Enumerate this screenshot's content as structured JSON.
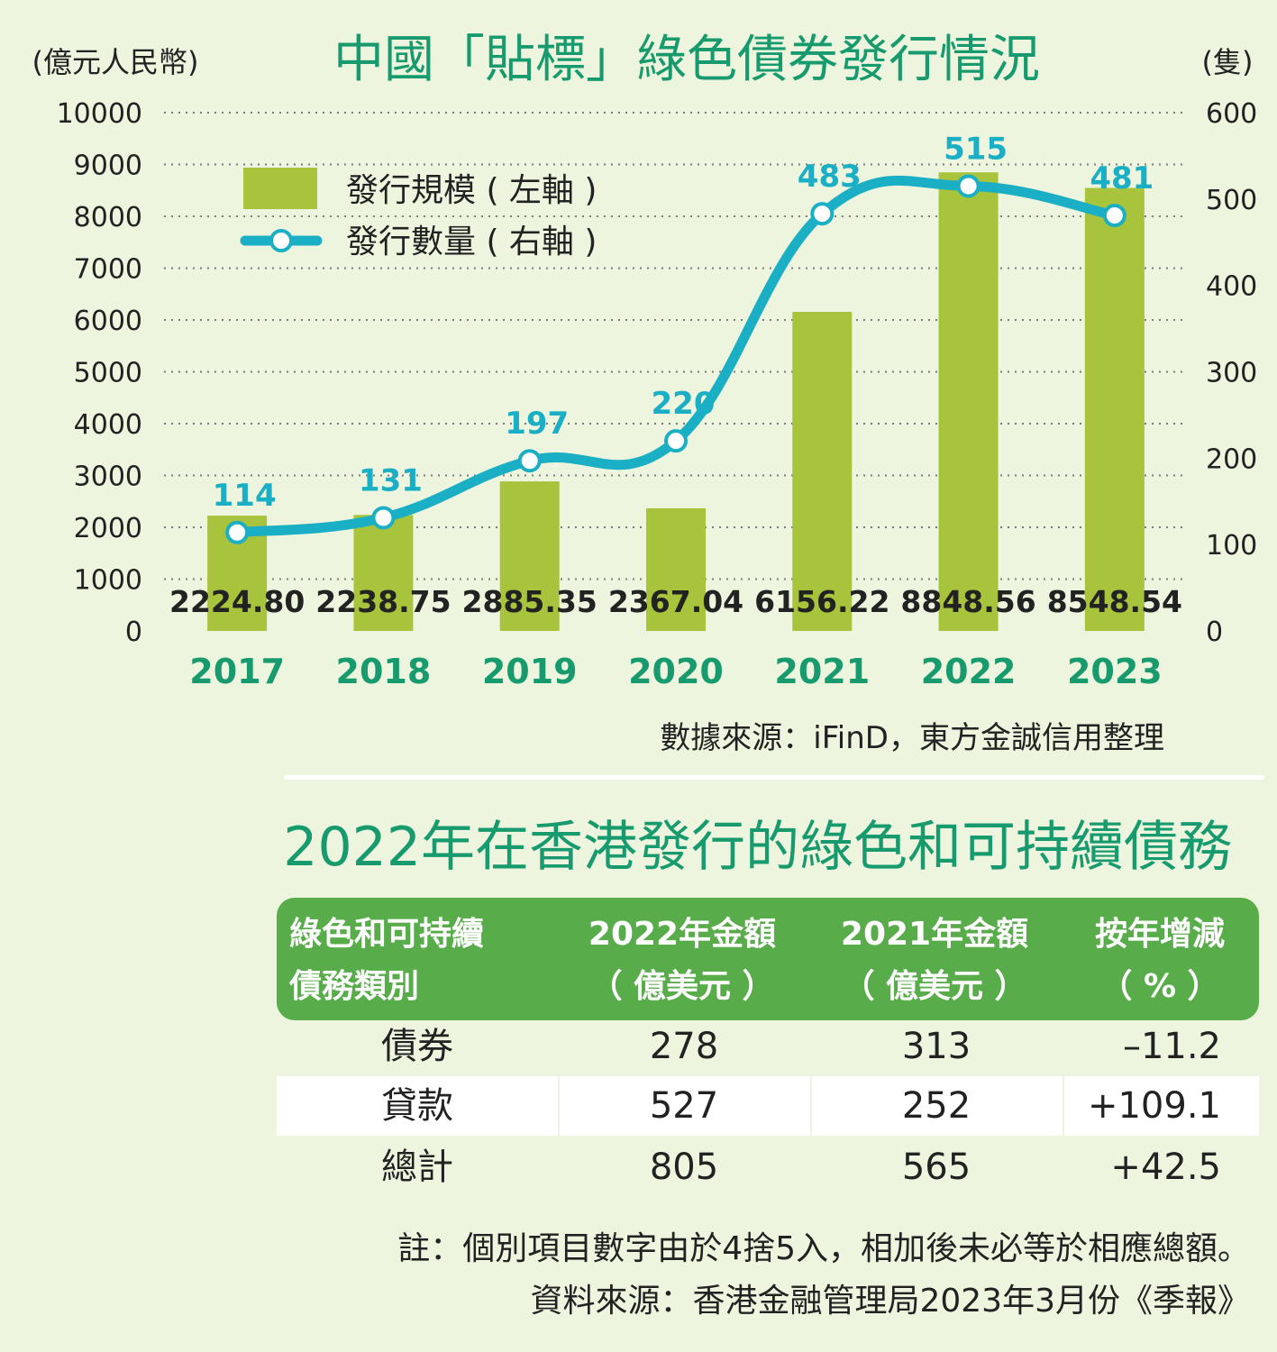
{
  "chart_data": {
    "type": "bar",
    "title": "中國「貼標」綠色債券發行情況",
    "left_axis_unit": "(億元人民幣)",
    "right_axis_unit": "(隻)",
    "categories": [
      "2017",
      "2018",
      "2019",
      "2020",
      "2021",
      "2022",
      "2023"
    ],
    "left_ticks": [
      "0",
      "1000",
      "2000",
      "3000",
      "4000",
      "5000",
      "6000",
      "7000",
      "8000",
      "9000",
      "10000"
    ],
    "right_ticks": [
      "0",
      "100",
      "200",
      "300",
      "400",
      "500",
      "600"
    ],
    "ylim_left": [
      0,
      10000
    ],
    "ylim_right": [
      0,
      600
    ],
    "grid": "dotted horizontal",
    "legend_placement": "top-left",
    "series": [
      {
        "name": "發行規模 ( 左軸 )",
        "type": "bar",
        "axis": "left",
        "color": "#a8c43d",
        "values": [
          2224.8,
          2238.75,
          2885.35,
          2367.04,
          6156.22,
          8848.56,
          8548.54
        ],
        "labels": [
          "2224.80",
          "2238.75",
          "2885.35",
          "2367.04",
          "6156.22",
          "8848.56",
          "8548.54"
        ]
      },
      {
        "name": "發行數量 ( 右軸 )",
        "type": "line",
        "axis": "right",
        "color": "#1aafc4",
        "values": [
          114,
          131,
          197,
          220,
          483,
          515,
          481
        ],
        "labels": [
          "114",
          "131",
          "197",
          "220",
          "483",
          "515",
          "481"
        ]
      }
    ],
    "source": "數據來源：iFinD，東方金誠信用整理"
  },
  "colors": {
    "title_green": "#179b6e",
    "bar_green": "#a8c43d",
    "line_blue": "#1aafc4",
    "header_green": "#58ac4a"
  },
  "table": {
    "title": "2022年在香港發行的綠色和可持續債務",
    "headers": [
      [
        "綠色和可持續",
        "債務類別"
      ],
      [
        "2022年金額",
        "（ 億美元 ）"
      ],
      [
        "2021年金額",
        "（ 億美元 ）"
      ],
      [
        "按年增減",
        "（ % ）"
      ]
    ],
    "rows": [
      [
        "債券",
        "278",
        "313",
        "–11.2"
      ],
      [
        "貸款",
        "527",
        "252",
        "+109.1"
      ],
      [
        "總計",
        "805",
        "565",
        "+42.5"
      ]
    ],
    "note": "註：個別項目數字由於4捨5入，相加後未必等於相應總額。",
    "source": "資料來源：香港金融管理局2023年3月份《季報》"
  }
}
